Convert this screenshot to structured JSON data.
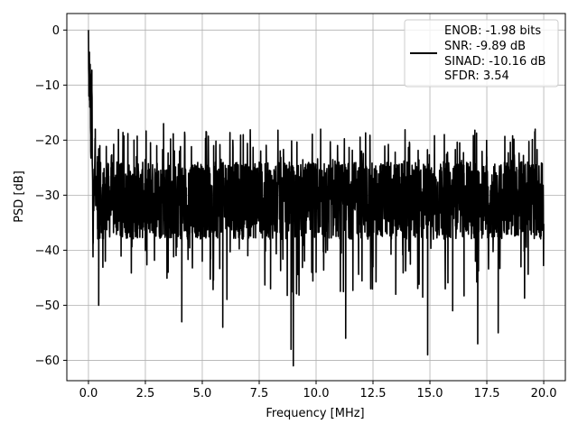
{
  "chart_data": {
    "type": "line",
    "xlabel": "Frequency [MHz]",
    "ylabel": "PSD [dB]",
    "xlim": [
      -0.95,
      20.95
    ],
    "ylim": [
      -63.7,
      3.0
    ],
    "xticks": [
      0.0,
      2.5,
      5.0,
      7.5,
      10.0,
      12.5,
      15.0,
      17.5,
      20.0
    ],
    "xtick_labels": [
      "0.0",
      "2.5",
      "5.0",
      "7.5",
      "10.0",
      "12.5",
      "15.0",
      "17.5",
      "20.0"
    ],
    "yticks": [
      0,
      -10,
      -20,
      -30,
      -40,
      -50,
      -60
    ],
    "ytick_labels": [
      "0",
      "−10",
      "−20",
      "−30",
      "−40",
      "−50",
      "−60"
    ],
    "grid": true,
    "legend_position": "top-right",
    "legend": [
      "ENOB: -1.98 bits",
      "SNR: -9.89 dB",
      "SINAD: -10.16 dB",
      "SFDR: 3.54"
    ],
    "series": [
      {
        "color": "#000000",
        "x": [
          0.0,
          0.02,
          0.04,
          0.06,
          0.08,
          0.1,
          0.15,
          0.2,
          0.3,
          0.4,
          0.45,
          0.5,
          0.7,
          1.0,
          1.5,
          2.0,
          2.5,
          3.0,
          3.3,
          3.5,
          4.0,
          4.1,
          4.5,
          5.0,
          5.5,
          5.9,
          6.0,
          6.5,
          7.0,
          7.5,
          8.0,
          8.5,
          8.9,
          9.0,
          9.5,
          10.0,
          10.2,
          10.5,
          11.0,
          11.3,
          11.5,
          12.0,
          12.5,
          13.0,
          13.5,
          14.0,
          14.5,
          14.9,
          15.0,
          15.5,
          16.0,
          16.5,
          17.0,
          17.1,
          17.5,
          18.0,
          18.5,
          19.0,
          19.5,
          20.0
        ],
        "values": [
          0.0,
          -12.0,
          -5.0,
          -14.0,
          -8.0,
          -22.0,
          -11.0,
          -39.0,
          -18.0,
          -23.0,
          -50.0,
          -21.0,
          -28.0,
          -24.0,
          -31.0,
          -20.0,
          -34.0,
          -21.0,
          -17.0,
          -44.0,
          -22.0,
          -53.0,
          -25.0,
          -42.0,
          -21.0,
          -54.0,
          -32.0,
          -26.0,
          -41.0,
          -24.0,
          -47.0,
          -27.0,
          -58.0,
          -61.0,
          -25.0,
          -44.0,
          -18.0,
          -40.0,
          -24.0,
          -56.0,
          -29.0,
          -22.0,
          -43.0,
          -26.0,
          -48.0,
          -24.0,
          -38.0,
          -59.0,
          -30.0,
          -25.0,
          -51.0,
          -26.0,
          -42.0,
          -57.0,
          -23.0,
          -55.0,
          -27.0,
          -43.0,
          -24.0,
          -38.0
        ]
      }
    ]
  }
}
